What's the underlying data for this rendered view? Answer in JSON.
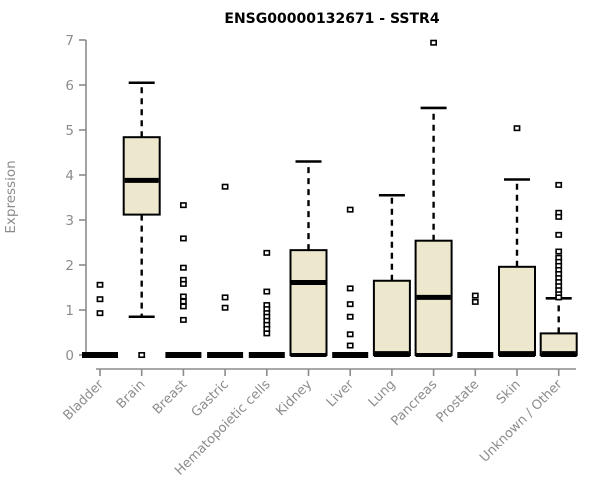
{
  "chart_data": {
    "type": "boxplot",
    "title": "ENSG00000132671 - SSTR4",
    "ylabel": "Expression",
    "xlabel": "",
    "ylim": [
      0,
      7
    ],
    "yticks": [
      0,
      1,
      2,
      3,
      4,
      5,
      6,
      7
    ],
    "grid": false,
    "legend": "none",
    "categories": [
      "Bladder",
      "Brain",
      "Breast",
      "Gastric",
      "Hematopoietic cells",
      "Kidney",
      "Liver",
      "Lung",
      "Pancreas",
      "Prostate",
      "Skin",
      "Unknown / Other"
    ],
    "boxes": [
      {
        "category": "Bladder",
        "whisker_low": 0,
        "q1": 0,
        "median": 0,
        "q3": 0,
        "whisker_high": 0,
        "outliers": [
          1.56,
          1.24,
          0.93
        ]
      },
      {
        "category": "Brain",
        "whisker_low": 0.85,
        "q1": 3.12,
        "median": 3.88,
        "q3": 4.84,
        "whisker_high": 6.05,
        "outliers": [
          0
        ]
      },
      {
        "category": "Breast",
        "whisker_low": 0,
        "q1": 0,
        "median": 0,
        "q3": 0,
        "whisker_high": 0,
        "outliers": [
          3.33,
          2.59,
          1.94,
          1.67,
          1.58,
          1.3,
          1.19,
          1.08,
          0.78
        ]
      },
      {
        "category": "Gastric",
        "whisker_low": 0,
        "q1": 0,
        "median": 0,
        "q3": 0,
        "whisker_high": 0,
        "outliers": [
          3.74,
          1.28,
          1.05
        ]
      },
      {
        "category": "Hematopoietic cells",
        "whisker_low": 0,
        "q1": 0,
        "median": 0,
        "q3": 0,
        "whisker_high": 0,
        "outliers": [
          2.27,
          1.41,
          1.11,
          1.02,
          0.93,
          0.85,
          0.76,
          0.67,
          0.58,
          0.48
        ]
      },
      {
        "category": "Kidney",
        "whisker_low": 0,
        "q1": 0,
        "median": 1.61,
        "q3": 2.33,
        "whisker_high": 4.3,
        "outliers": []
      },
      {
        "category": "Liver",
        "whisker_low": 0,
        "q1": 0,
        "median": 0,
        "q3": 0,
        "whisker_high": 0,
        "outliers": [
          3.23,
          1.48,
          1.13,
          0.85,
          0.46,
          0.21
        ]
      },
      {
        "category": "Lung",
        "whisker_low": 0,
        "q1": 0,
        "median": 0.03,
        "q3": 1.65,
        "whisker_high": 3.55,
        "outliers": []
      },
      {
        "category": "Pancreas",
        "whisker_low": 0,
        "q1": 0,
        "median": 1.28,
        "q3": 2.54,
        "whisker_high": 5.49,
        "outliers": [
          6.94
        ]
      },
      {
        "category": "Prostate",
        "whisker_low": 0,
        "q1": 0,
        "median": 0,
        "q3": 0,
        "whisker_high": 0,
        "outliers": [
          1.32,
          1.18
        ]
      },
      {
        "category": "Skin",
        "whisker_low": 0,
        "q1": 0,
        "median": 0.03,
        "q3": 1.96,
        "whisker_high": 3.9,
        "outliers": [
          5.04
        ]
      },
      {
        "category": "Unknown / Other",
        "whisker_low": 0,
        "q1": 0,
        "median": 0.03,
        "q3": 0.48,
        "whisker_high": 1.26,
        "outliers": [
          3.78,
          3.16,
          3.07,
          2.67,
          2.3,
          2.16,
          2.07,
          1.98,
          1.89,
          1.8,
          1.71,
          1.62,
          1.53,
          1.44,
          1.35,
          1.28
        ]
      }
    ],
    "colors": {
      "box_fill": "#EDE8CD",
      "box_stroke": "#000000",
      "median_color": "#000000",
      "whisker_color": "#000000",
      "outlier_stroke": "#000000",
      "axis_color": "#8c8c8c",
      "tick_label_color": "#8c8c8c",
      "title_color": "#000000",
      "background": "#ffffff"
    }
  }
}
